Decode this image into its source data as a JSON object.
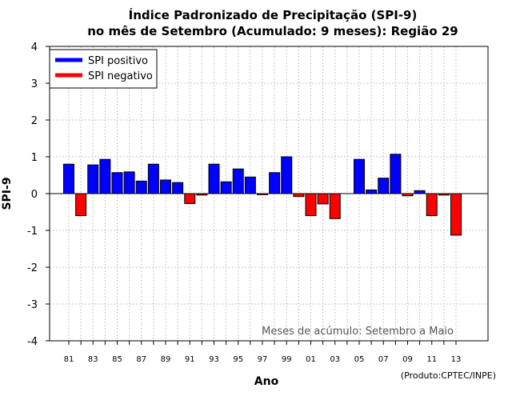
{
  "chart_data": {
    "type": "bar",
    "title_line1": "Índice Padronizado de Precipitação (SPI-9)",
    "title_line2": "no mês de Setembro (Acumulado: 9 meses): Região 29",
    "xlabel": "Ano",
    "ylabel": "SPI-9",
    "ylim": [
      -4,
      4
    ],
    "yticks": [
      "-4",
      "-3",
      "-2",
      "-1",
      "0",
      "1",
      "2",
      "3",
      "4"
    ],
    "xtick_labels": [
      "81",
      "83",
      "85",
      "87",
      "89",
      "91",
      "93",
      "95",
      "97",
      "99",
      "01",
      "03",
      "05",
      "07",
      "09",
      "11",
      "13"
    ],
    "grid": true,
    "legend": {
      "placement": "top-left",
      "positive_label": "SPI positivo",
      "negative_label": "SPI negativo"
    },
    "annotation": "Meses de acúmulo: Setembro a Maio",
    "credit": "(Produto:CPTEC/INPE)",
    "categories": [
      "1981",
      "1982",
      "1983",
      "1984",
      "1985",
      "1986",
      "1987",
      "1988",
      "1989",
      "1990",
      "1991",
      "1992",
      "1993",
      "1994",
      "1995",
      "1996",
      "1997",
      "1998",
      "1999",
      "2000",
      "2001",
      "2002",
      "2003",
      "2004",
      "2005",
      "2006",
      "2007",
      "2008",
      "2009",
      "2010",
      "2011",
      "2012",
      "2013"
    ],
    "values": [
      0.8,
      -0.6,
      0.78,
      0.93,
      0.57,
      0.59,
      0.34,
      0.8,
      0.37,
      0.3,
      -0.27,
      -0.04,
      0.8,
      0.32,
      0.67,
      0.45,
      -0.03,
      0.57,
      1.0,
      -0.08,
      -0.6,
      -0.28,
      -0.68,
      0.0,
      0.93,
      0.1,
      0.42,
      1.07,
      -0.06,
      0.08,
      -0.6,
      -0.04,
      -1.13
    ],
    "colors": {
      "positive": "#0000ff",
      "negative": "#ff0000",
      "grid": "#c8c8c8"
    }
  }
}
